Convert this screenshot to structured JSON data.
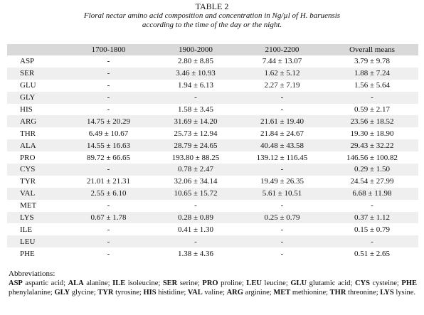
{
  "title": "TABLE 2",
  "caption_line1": "Floral nectar amino acid composition and concentration in Ng/µl of H. baruensis",
  "caption_line2": "according to the time of the day or the night.",
  "columns": [
    "",
    "1700-1800",
    "1900-2000",
    "2100-2200",
    "Overall means"
  ],
  "rows": [
    [
      "ASP",
      "-",
      "2.80 ± 8.85",
      "7.44 ± 13.07",
      "3.79 ± 9.78"
    ],
    [
      "SER",
      "-",
      "3.46 ± 10.93",
      "1.62 ± 5.12",
      "1.88 ± 7.24"
    ],
    [
      "GLU",
      "-",
      "1.94 ± 6.13",
      "2.27 ± 7.19",
      "1.56 ± 5.64"
    ],
    [
      "GLY",
      "-",
      "-",
      "-",
      "-"
    ],
    [
      "HIS",
      "-",
      "1.58 ± 3.45",
      "-",
      "0.59 ± 2.17"
    ],
    [
      "ARG",
      "14.75 ± 20.29",
      "31.69 ± 14.20",
      "21.61 ± 19.40",
      "23.56 ± 18.52"
    ],
    [
      "THR",
      "6.49 ± 10.67",
      "25.73 ± 12.94",
      "21.84 ± 24.67",
      "19.30 ± 18.90"
    ],
    [
      "ALA",
      "14.55 ± 16.63",
      "28.79 ± 24.65",
      "40.48 ± 43.58",
      "29.43 ± 32.22"
    ],
    [
      "PRO",
      "89.72 ± 66.65",
      "193.80 ± 88.25",
      "139.12 ± 116.45",
      "146.56 ± 100.82"
    ],
    [
      "CYS",
      "-",
      "0.78 ± 2.47",
      "-",
      "0.29 ± 1.50"
    ],
    [
      "TYR",
      "21.01 ± 21.31",
      "32.06 ± 34.14",
      "19.49 ± 26.35",
      "24.54 ± 27.99"
    ],
    [
      "VAL",
      "2.55 ± 6.10",
      "10.65 ± 15.72",
      "5.61 ± 10.51",
      "6.68 ± 11.98"
    ],
    [
      "MET",
      "-",
      "-",
      "-",
      "-"
    ],
    [
      "LYS",
      "0.67 ± 1.78",
      "0.28 ± 0.89",
      "0.25 ± 0.79",
      "0.37 ± 1.12"
    ],
    [
      "ILE",
      "-",
      "0.41 ± 1.30",
      "-",
      "0.15 ± 0.79"
    ],
    [
      "LEU",
      "-",
      "-",
      "-",
      "-"
    ],
    [
      "PHE",
      "-",
      "1.38 ± 4.36",
      "-",
      "0.51 ± 2.65"
    ]
  ],
  "abbreviations_heading": "Abbreviations:",
  "abbreviations": [
    [
      "ASP",
      "aspartic acid;"
    ],
    [
      "ALA",
      "alanine;"
    ],
    [
      "ILE",
      "isoleucine;"
    ],
    [
      "SER",
      "serine;"
    ],
    [
      "PRO",
      "proline;"
    ],
    [
      "LEU",
      "leucine;"
    ],
    [
      "GLU",
      "glutamic acid;"
    ],
    [
      "CYS",
      "cysteine;"
    ],
    [
      "PHE",
      "phenylalanine;"
    ],
    [
      "GLY",
      "glycine;"
    ],
    [
      "TYR",
      "tyrosine;"
    ],
    [
      "HIS",
      "histidine;"
    ],
    [
      "VAL",
      "valine;"
    ],
    [
      "ARG",
      "arginine;"
    ],
    [
      "MET",
      "methionine;"
    ],
    [
      "THR",
      "threonine;"
    ],
    [
      "LYS",
      "lysine."
    ]
  ]
}
